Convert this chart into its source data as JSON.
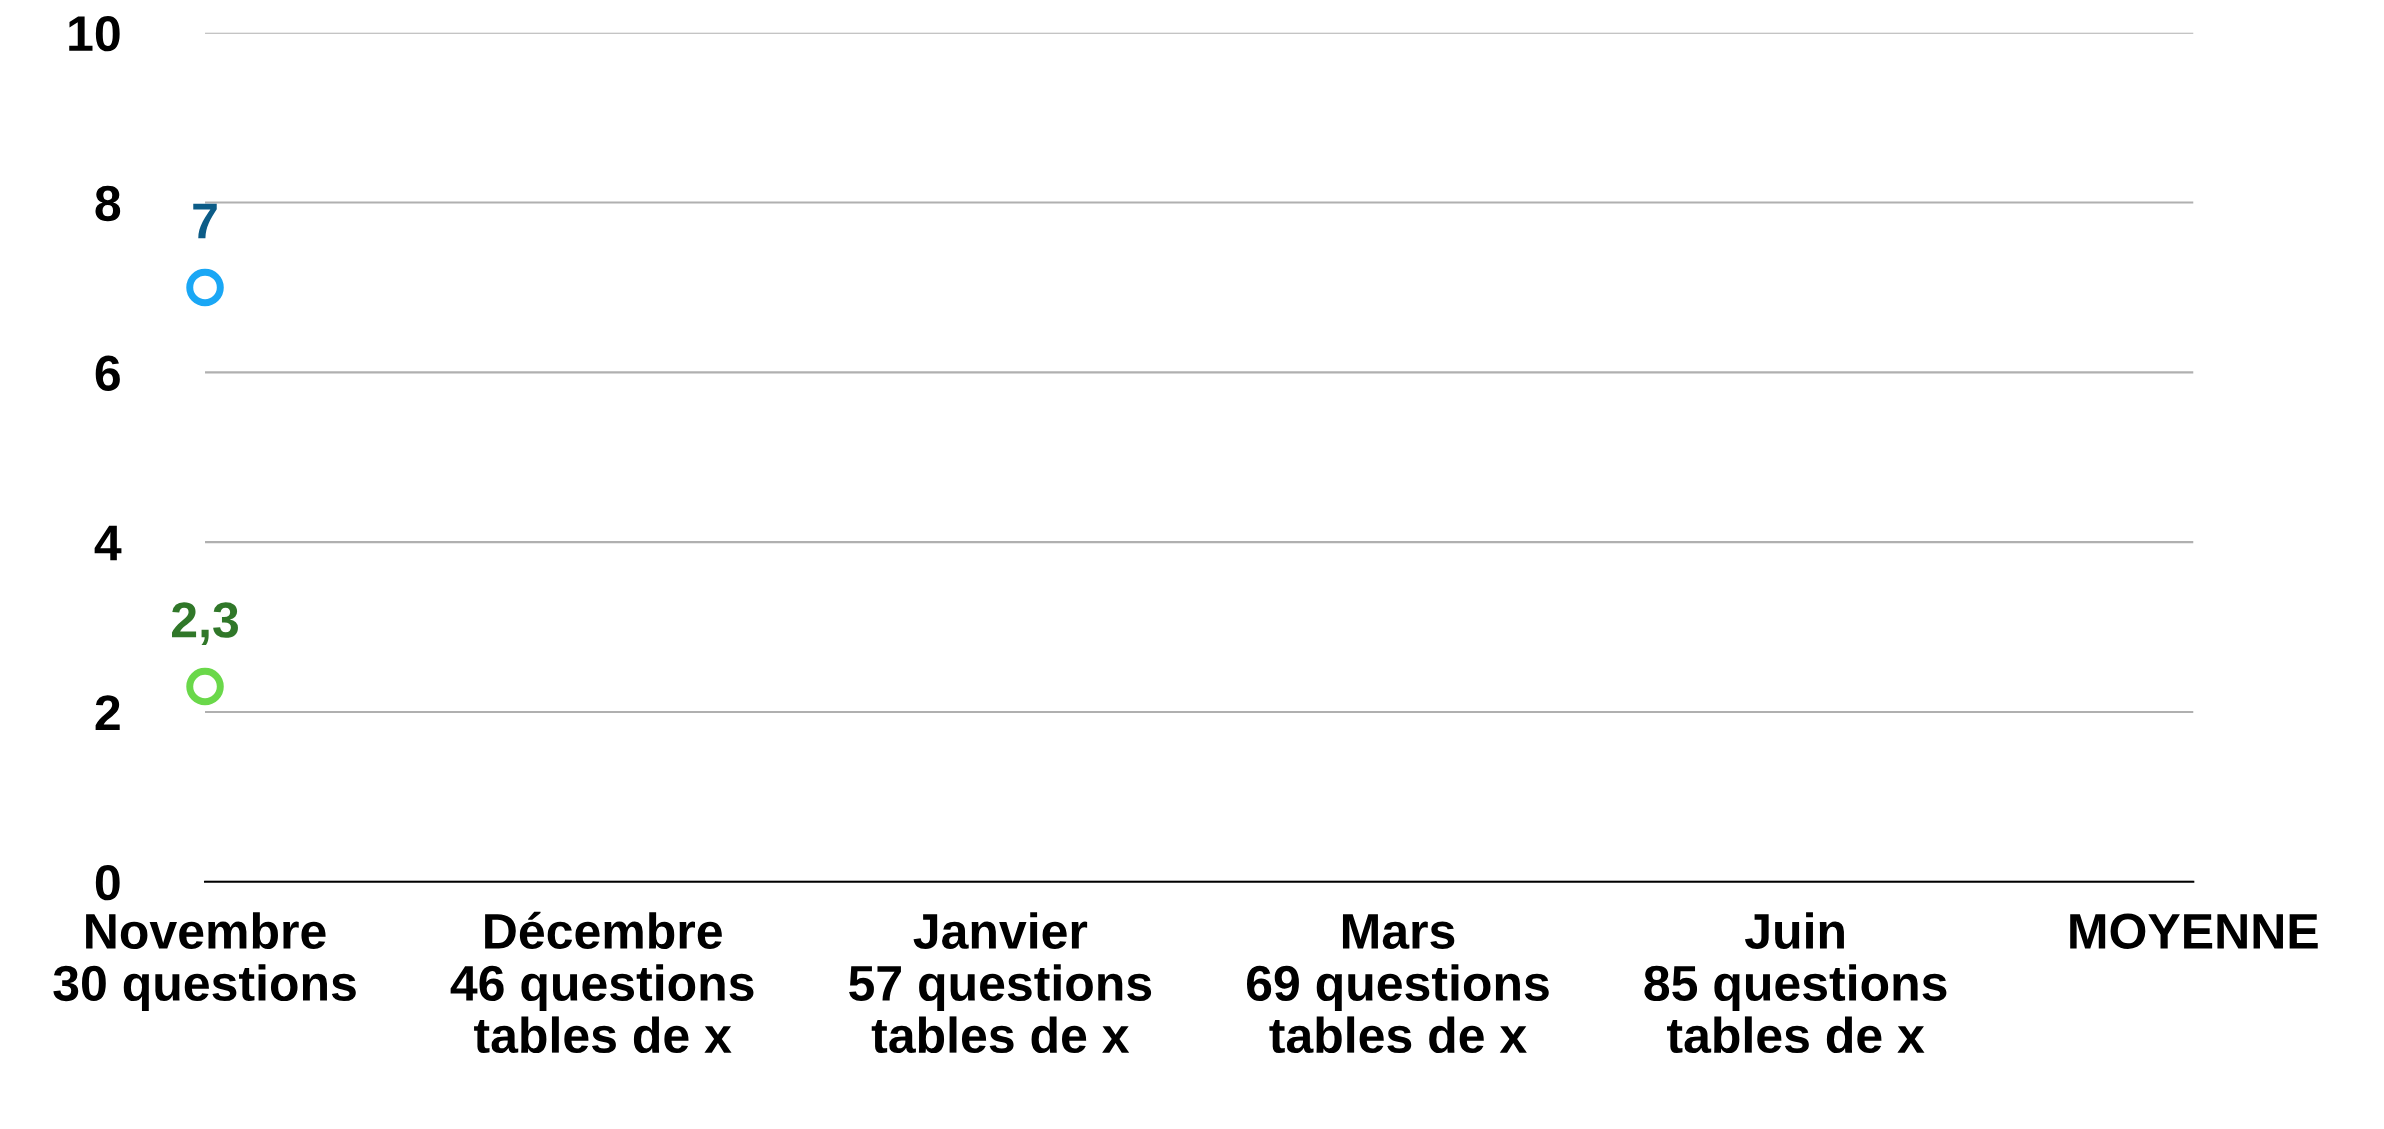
{
  "chart_data": {
    "type": "line",
    "categories": [
      "Novembre\n30 questions",
      "Décembre\n46 questions\ntables de x",
      "Janvier\n57 questions\ntables de x",
      "Mars\n69 questions\ntables de x",
      "Juin\n85 questions\ntables de x",
      "MOYENNE"
    ],
    "series": [
      {
        "color": "#1aa7f5",
        "values": [
          7,
          null,
          null,
          null,
          null,
          null
        ],
        "value_labels": [
          "7",
          null,
          null,
          null,
          null,
          null
        ]
      },
      {
        "color": "#6ad84a",
        "values": [
          2.3,
          null,
          null,
          null,
          null,
          null
        ],
        "value_labels": [
          "2,3",
          null,
          null,
          null,
          null,
          null
        ]
      }
    ],
    "ylim": [
      0,
      10
    ],
    "yticks": [
      0,
      2,
      4,
      6,
      8,
      10
    ],
    "grid": "y",
    "marker": "circle",
    "legend": false
  }
}
